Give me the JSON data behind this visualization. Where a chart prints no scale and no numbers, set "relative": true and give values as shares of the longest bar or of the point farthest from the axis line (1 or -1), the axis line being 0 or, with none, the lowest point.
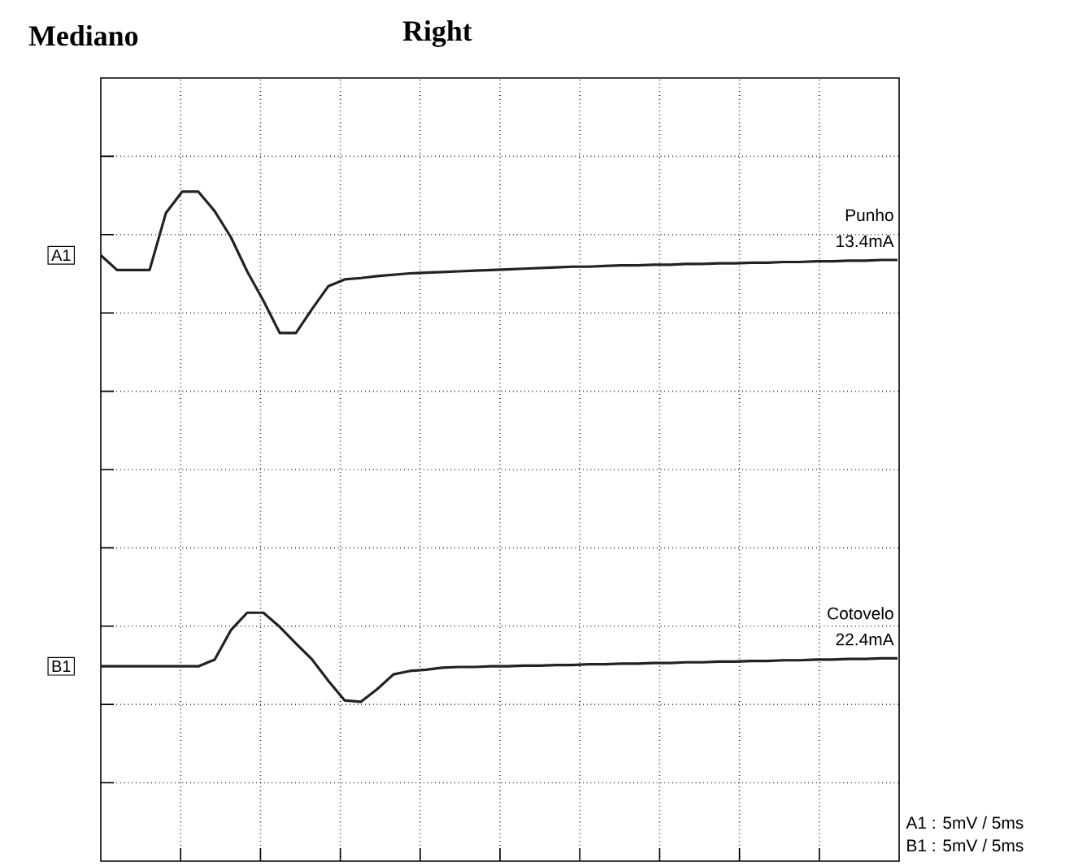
{
  "chart_data": {
    "type": "line",
    "title": "Mediano",
    "subtitle": "Right",
    "relative": true,
    "grid": true,
    "categories": [
      null,
      null,
      null,
      null,
      null,
      null,
      null,
      null,
      null,
      null,
      null,
      null,
      null,
      null,
      null,
      null,
      null,
      null,
      null,
      null,
      null,
      null,
      null,
      null,
      null,
      null,
      null,
      null,
      null,
      null,
      null,
      null,
      null,
      null,
      null,
      null,
      null,
      null,
      null,
      null,
      null,
      null,
      null,
      null,
      null,
      null,
      null,
      null,
      null,
      null
    ],
    "series": [
      {
        "name": "A1",
        "color": "#222222",
        "values": [
          0.905,
          0.883,
          0.883,
          0.883,
          0.968,
          1.0,
          1.0,
          0.971,
          0.932,
          0.881,
          0.837,
          0.789,
          0.789,
          0.825,
          0.859,
          0.869,
          0.871,
          0.874,
          0.876,
          0.878,
          0.879,
          0.88,
          0.881,
          0.882,
          0.883,
          0.884,
          0.885,
          0.886,
          0.887,
          0.888,
          0.888,
          0.889,
          0.89,
          0.89,
          0.891,
          0.891,
          0.892,
          0.892,
          0.893,
          0.893,
          0.894,
          0.894,
          0.895,
          0.895,
          0.896,
          0.896,
          0.897,
          0.897,
          0.898,
          0.898
        ]
      },
      {
        "name": "B1",
        "color": "#222222",
        "values": [
          0.291,
          0.291,
          0.291,
          0.291,
          0.291,
          0.291,
          0.291,
          0.301,
          0.345,
          0.371,
          0.371,
          0.35,
          0.325,
          0.301,
          0.269,
          0.24,
          0.238,
          0.257,
          0.279,
          0.284,
          0.286,
          0.289,
          0.29,
          0.29,
          0.291,
          0.291,
          0.292,
          0.292,
          0.293,
          0.293,
          0.294,
          0.294,
          0.295,
          0.295,
          0.296,
          0.296,
          0.297,
          0.297,
          0.298,
          0.298,
          0.299,
          0.299,
          0.3,
          0.3,
          0.301,
          0.301,
          0.302,
          0.302,
          0.303,
          0.303
        ]
      }
    ],
    "annotations": [
      "Punho",
      "13.4mA",
      "Cotovelo",
      "22.4mA",
      "A1 : 5mV / 5ms",
      "B1 : 5mV / 5ms"
    ]
  }
}
